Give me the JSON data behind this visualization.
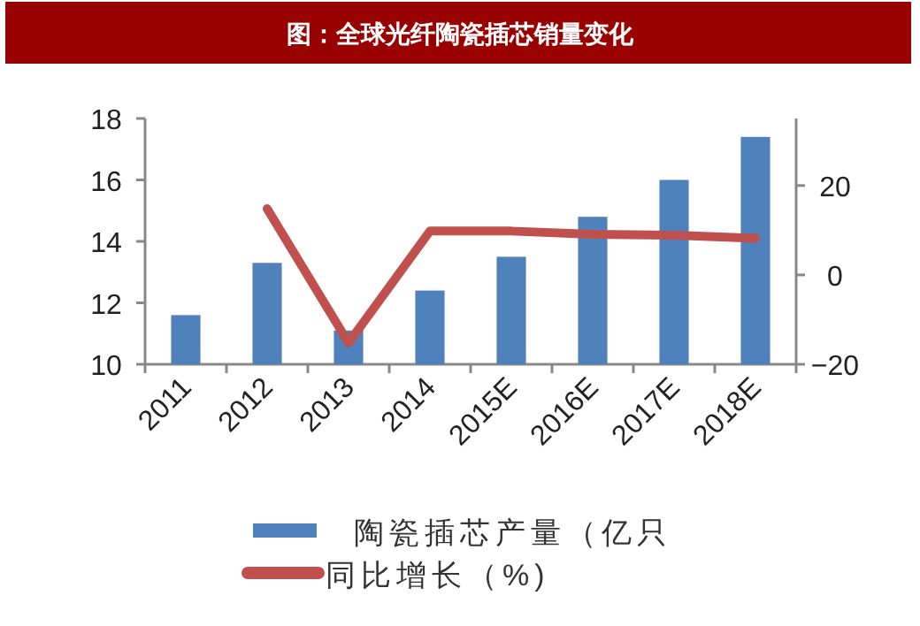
{
  "chart_data": {
    "type": "bar",
    "title": "图：全球光纤陶瓷插芯销量变化",
    "categories": [
      "2011",
      "2012",
      "2013",
      "2014",
      "2015E",
      "2016E",
      "2017E",
      "2018E"
    ],
    "series": [
      {
        "name": "陶瓷插芯产量（亿只",
        "color": "#4f81bd",
        "values": [
          11.6,
          13.3,
          11.1,
          12.4,
          13.5,
          14.8,
          16.0,
          17.4
        ]
      },
      {
        "name": "同比增长（%)",
        "color": "#c0504d",
        "type": "line",
        "axis": "y2",
        "values": [
          null,
          14.8,
          -15.2,
          9.8,
          9.8,
          9.1,
          8.9,
          8.2
        ]
      }
    ],
    "ylim": [
      10,
      18
    ],
    "yticks": [
      10,
      12,
      14,
      16,
      18
    ],
    "y2lim": [
      -20,
      35
    ],
    "y2ticks": [
      {
        "value": -20,
        "label": "−20"
      },
      0,
      20
    ],
    "grid": false,
    "legend": "bottom",
    "marker": "none",
    "line_style": "solid"
  }
}
